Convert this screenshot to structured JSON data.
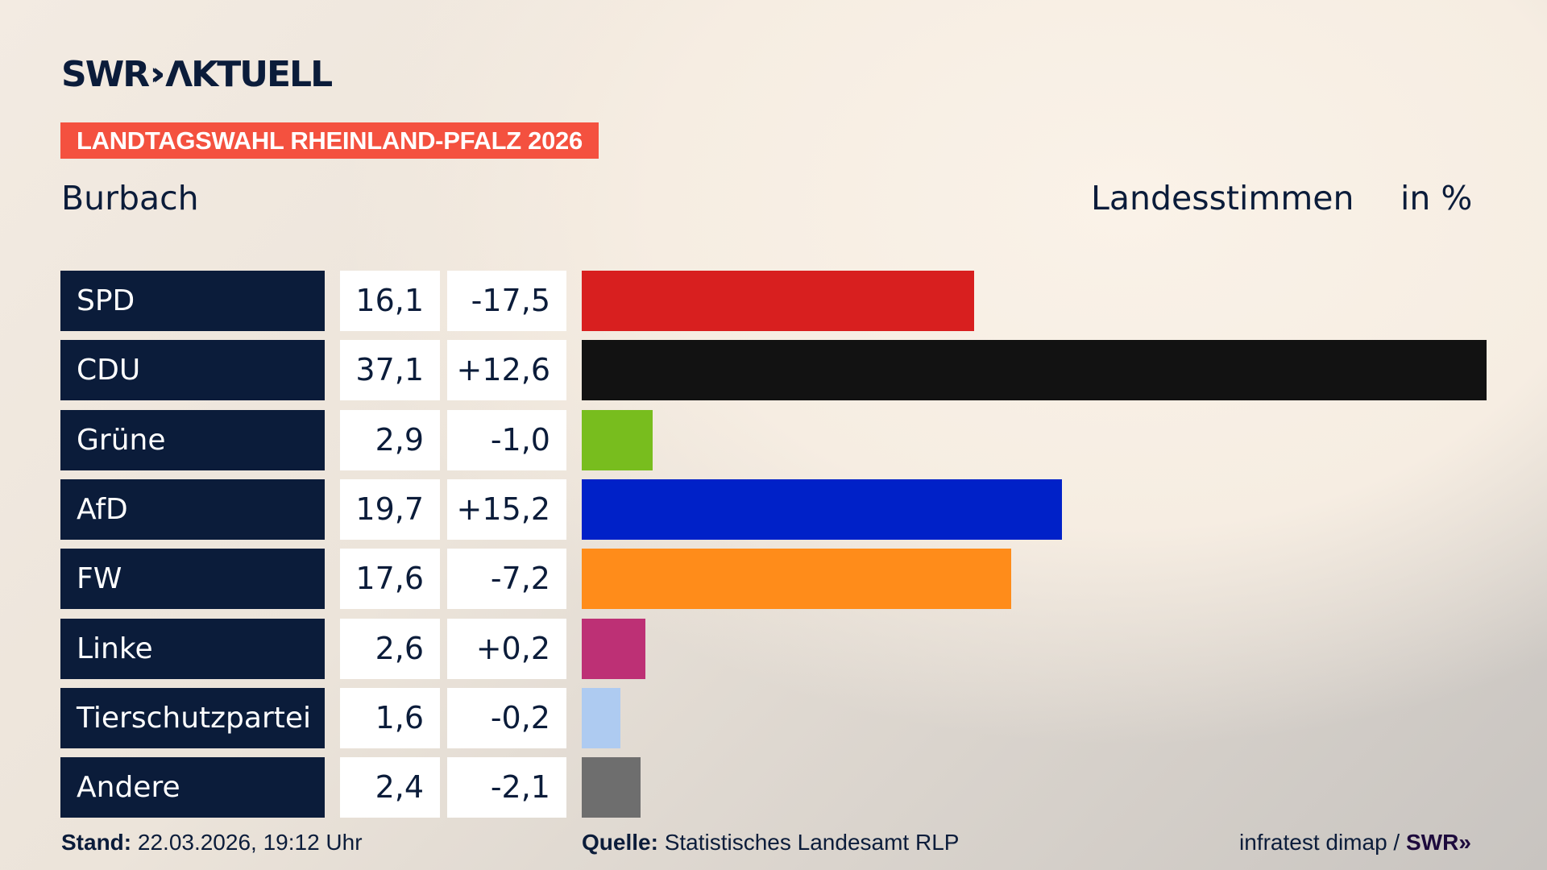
{
  "header": {
    "logo": "SWR AKTUELL",
    "banner": "LANDTAGSWAHL RHEINLAND-PFALZ 2026",
    "region": "Burbach",
    "vote_type": "Landesstimmen",
    "unit": "in %"
  },
  "chart_data": {
    "type": "bar",
    "orientation": "horizontal",
    "grid": false,
    "categories": [
      "SPD",
      "CDU",
      "Grüne",
      "AfD",
      "FW",
      "Linke",
      "Tierschutzpartei",
      "Andere"
    ],
    "values": [
      16.1,
      37.1,
      2.9,
      19.7,
      17.6,
      2.6,
      1.6,
      2.4
    ],
    "value_labels": [
      "16,1",
      "37,1",
      "2,9",
      "19,7",
      "17,6",
      "2,6",
      "1,6",
      "2,4"
    ],
    "diff_labels": [
      "-17,5",
      "+12,6",
      "-1,0",
      "+15,2",
      "-7,2",
      "+0,2",
      "-0,2",
      "-2,1"
    ],
    "diffs": [
      -17.5,
      12.6,
      -1.0,
      15.2,
      -7.2,
      0.2,
      -0.2,
      -2.1
    ],
    "colors": [
      "#d81f1f",
      "#121212",
      "#78bd1e",
      "#0021c8",
      "#ff8c1a",
      "#bd3075",
      "#aecbf1",
      "#6e6e6e"
    ],
    "xlim": [
      0,
      37.1
    ]
  },
  "footer": {
    "stand_label": "Stand:",
    "stand_value": "22.03.2026, 19:12 Uhr",
    "source_label": "Quelle:",
    "source_value": "Statistisches Landesamt RLP",
    "credit": "infratest dimap /",
    "credit_logo": "SWR"
  }
}
